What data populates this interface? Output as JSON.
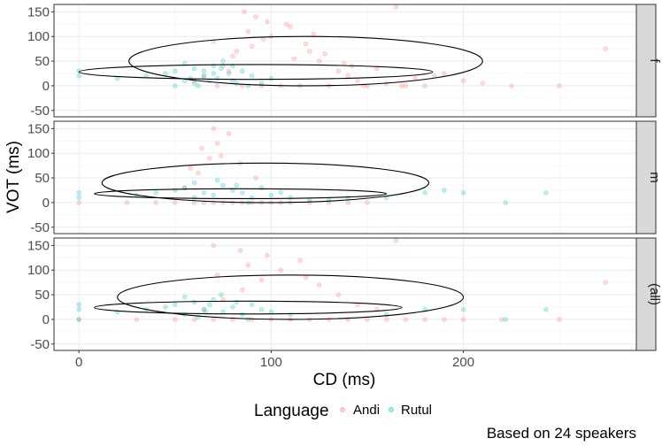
{
  "chart_data": {
    "type": "scatter",
    "xlabel": "CD (ms)",
    "ylabel": "VOT (ms)",
    "xlim": [
      -13,
      290
    ],
    "ylim": [
      -63,
      165
    ],
    "x_ticks": [
      0,
      100,
      200
    ],
    "y_ticks": [
      -50,
      0,
      50,
      100,
      150
    ],
    "grid": true,
    "legend": {
      "title": "Language",
      "position": "bottom",
      "entries": [
        {
          "name": "Andi",
          "color": "#F8766D"
        },
        {
          "name": "Rutul",
          "color": "#00BFC4"
        }
      ]
    },
    "caption": "Based on 24 speakers",
    "facets": [
      {
        "label": "f",
        "series": [
          {
            "name": "Andi",
            "color": "#F8766D",
            "x": [
              72,
              85,
              95,
              105,
              115,
              130,
              150,
              170,
              180,
              60,
              65,
              75,
              80,
              90,
              100,
              110,
              120,
              125,
              135,
              140,
              145,
              160,
              175,
              190,
              200,
              210,
              225,
              250,
              274,
              70,
              88,
              98,
              118,
              128,
              138,
              155,
              165,
              185,
              92,
              108,
              82,
              96,
              112,
              142,
              86,
              122,
              78,
              168,
              148
            ],
            "y": [
              0,
              0,
              0,
              0,
              0,
              0,
              0,
              0,
              0,
              10,
              20,
              40,
              60,
              80,
              100,
              120,
              70,
              50,
              30,
              20,
              10,
              5,
              15,
              25,
              10,
              5,
              0,
              0,
              75,
              90,
              110,
              130,
              85,
              65,
              45,
              35,
              160,
              20,
              140,
              125,
              70,
              95,
              55,
              40,
              150,
              105,
              30,
              0,
              0
            ]
          },
          {
            "name": "Rutul",
            "color": "#00BFC4",
            "x": [
              0,
              0,
              20,
              35,
              45,
              50,
              55,
              60,
              65,
              70,
              72,
              75,
              78,
              80,
              85,
              90,
              95,
              100,
              55,
              60,
              65,
              70,
              80,
              50,
              68,
              74,
              82,
              62,
              58,
              88
            ],
            "y": [
              30,
              20,
              15,
              20,
              25,
              30,
              10,
              35,
              20,
              40,
              15,
              50,
              25,
              10,
              30,
              20,
              5,
              15,
              45,
              5,
              30,
              25,
              40,
              0,
              10,
              35,
              5,
              0,
              15,
              0
            ]
          }
        ],
        "ellipses": [
          {
            "cx": 92,
            "cy": 28,
            "rx": 92,
            "ry": 15
          },
          {
            "cx": 118,
            "cy": 50,
            "rx": 92,
            "ry": 50
          }
        ]
      },
      {
        "label": "m",
        "series": [
          {
            "name": "Andi",
            "color": "#F8766D",
            "x": [
              0,
              25,
              40,
              50,
              60,
              65,
              70,
              75,
              80,
              85,
              90,
              95,
              100,
              105,
              110,
              120,
              130,
              140,
              150,
              55,
              62,
              68,
              72,
              78,
              84,
              92,
              64,
              74,
              70,
              58
            ],
            "y": [
              0,
              0,
              0,
              0,
              0,
              0,
              0,
              0,
              0,
              0,
              0,
              0,
              0,
              0,
              0,
              0,
              0,
              0,
              0,
              30,
              60,
              90,
              120,
              140,
              80,
              50,
              110,
              95,
              150,
              70
            ]
          },
          {
            "name": "Rutul",
            "color": "#00BFC4",
            "x": [
              0,
              0,
              30,
              40,
              50,
              55,
              60,
              65,
              70,
              75,
              80,
              85,
              90,
              95,
              100,
              105,
              110,
              120,
              160,
              180,
              190,
              200,
              222,
              243,
              130,
              140,
              60,
              72,
              82,
              88
            ],
            "y": [
              20,
              10,
              15,
              20,
              25,
              30,
              10,
              20,
              15,
              35,
              25,
              20,
              10,
              30,
              15,
              20,
              10,
              5,
              10,
              20,
              25,
              20,
              0,
              20,
              5,
              10,
              40,
              45,
              35,
              0
            ]
          }
        ],
        "ellipses": [
          {
            "cx": 84,
            "cy": 18,
            "rx": 76,
            "ry": 10
          },
          {
            "cx": 97,
            "cy": 40,
            "rx": 85,
            "ry": 40
          }
        ]
      },
      {
        "label": "(all)",
        "series": [
          {
            "name": "Andi",
            "color": "#F8766D",
            "x": [
              0,
              30,
              50,
              60,
              70,
              80,
              90,
              100,
              110,
              120,
              130,
              140,
              150,
              160,
              170,
              180,
              190,
              200,
              220,
              250,
              274,
              65,
              75,
              85,
              95,
              105,
              115,
              125,
              135,
              145,
              155,
              165,
              72,
              88,
              98,
              118,
              70,
              84
            ],
            "y": [
              0,
              0,
              0,
              0,
              0,
              0,
              0,
              0,
              0,
              0,
              0,
              0,
              0,
              0,
              0,
              0,
              0,
              0,
              0,
              0,
              75,
              20,
              40,
              60,
              80,
              100,
              120,
              70,
              50,
              30,
              20,
              160,
              90,
              110,
              130,
              85,
              150,
              140
            ]
          },
          {
            "name": "Rutul",
            "color": "#00BFC4",
            "x": [
              0,
              0,
              0,
              20,
              35,
              45,
              50,
              55,
              60,
              65,
              70,
              75,
              80,
              85,
              90,
              95,
              100,
              110,
              160,
              180,
              200,
              222,
              243,
              55,
              62,
              68,
              74,
              82,
              88,
              66
            ],
            "y": [
              30,
              20,
              0,
              15,
              20,
              25,
              30,
              10,
              35,
              20,
              40,
              15,
              25,
              10,
              30,
              20,
              15,
              10,
              10,
              20,
              20,
              0,
              20,
              45,
              5,
              30,
              50,
              35,
              0,
              15
            ]
          }
        ],
        "ellipses": [
          {
            "cx": 88,
            "cy": 24,
            "rx": 80,
            "ry": 13
          },
          {
            "cx": 110,
            "cy": 45,
            "rx": 90,
            "ry": 45
          }
        ]
      }
    ]
  }
}
